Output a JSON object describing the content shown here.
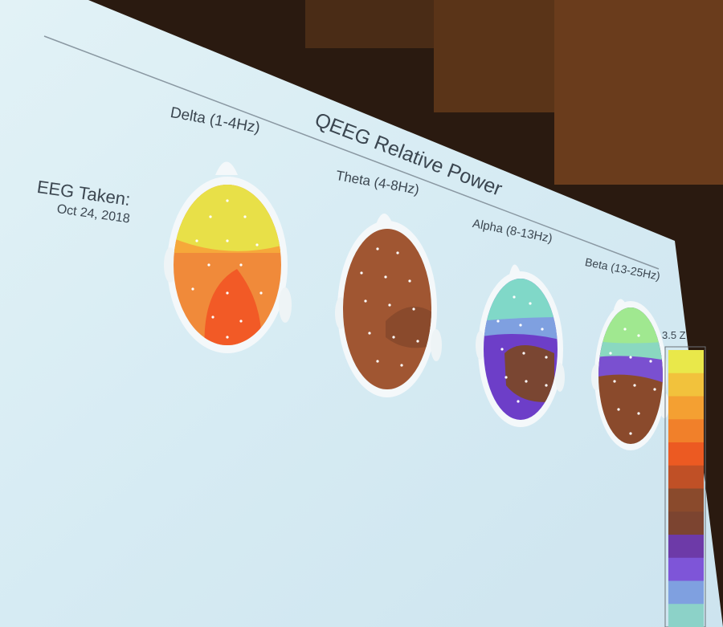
{
  "slide": {
    "title": "QEEG Relative Power",
    "eeg_taken_label": "EEG Taken:",
    "eeg_date": "Oct 24, 2018"
  },
  "maps": [
    {
      "name": "delta-map",
      "label": "Delta (1-4Hz)"
    },
    {
      "name": "theta-map",
      "label": "Theta (4-8Hz)"
    },
    {
      "name": "alpha-map",
      "label": "Alpha (8-13Hz)"
    },
    {
      "name": "beta-map",
      "label": "Beta (13-25Hz)"
    }
  ],
  "scale": {
    "max_label": "3.5 Z",
    "colors": [
      "#e9e84a",
      "#f2c23c",
      "#f4a032",
      "#f1802a",
      "#ec5a22",
      "#c05026",
      "#8a4a2c",
      "#7c4430",
      "#6d3aa8",
      "#7e55d8",
      "#7fa0e0",
      "#8cd2c8"
    ]
  },
  "palette": {
    "screen": "#d8ecf4",
    "head_outline": "#f4f8fa",
    "delta": [
      "#f08a3a",
      "#f6a83a",
      "#e8e048",
      "#f25a26"
    ],
    "theta": [
      "#a05632",
      "#8a4a2c"
    ],
    "alpha": [
      "#6d3ec8",
      "#7fa0e0",
      "#80d8c8",
      "#7a4632"
    ],
    "beta": [
      "#8a4a2c",
      "#7a50d0",
      "#8ad8c0",
      "#a0e890"
    ]
  }
}
